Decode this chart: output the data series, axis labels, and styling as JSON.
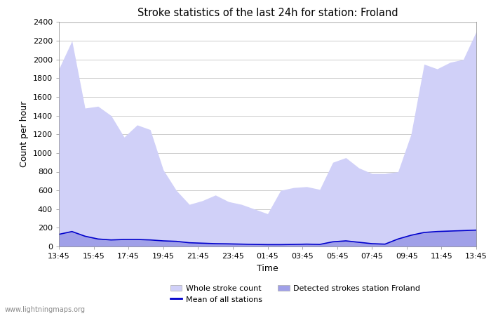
{
  "title": "Stroke statistics of the last 24h for station: Froland",
  "xlabel": "Time",
  "ylabel": "Count per hour",
  "x_labels": [
    "13:45",
    "15:45",
    "17:45",
    "19:45",
    "21:45",
    "23:45",
    "01:45",
    "03:45",
    "05:45",
    "07:45",
    "09:45",
    "11:45",
    "13:45"
  ],
  "ylim": [
    0,
    2400
  ],
  "yticks": [
    0,
    200,
    400,
    600,
    800,
    1000,
    1200,
    1400,
    1600,
    1800,
    2000,
    2200,
    2400
  ],
  "whole_stroke": [
    1900,
    2200,
    1480,
    1500,
    1400,
    1170,
    1300,
    1250,
    820,
    600,
    450,
    490,
    550,
    480,
    450,
    400,
    350,
    600,
    630,
    640,
    610,
    900,
    950,
    840,
    780,
    780,
    800,
    1200,
    1950,
    1900,
    1970,
    2000,
    2300
  ],
  "detected_strokes": [
    130,
    160,
    110,
    80,
    70,
    75,
    75,
    70,
    60,
    55,
    40,
    35,
    30,
    28,
    25,
    22,
    20,
    20,
    22,
    25,
    22,
    50,
    60,
    45,
    30,
    25,
    80,
    120,
    150,
    160,
    165,
    170,
    175
  ],
  "mean_line": [
    130,
    160,
    110,
    80,
    70,
    75,
    75,
    70,
    60,
    55,
    40,
    35,
    30,
    28,
    25,
    22,
    20,
    20,
    22,
    25,
    22,
    50,
    60,
    45,
    30,
    25,
    80,
    120,
    150,
    160,
    165,
    170,
    175
  ],
  "whole_stroke_color": "#d0d0f8",
  "detected_stroke_color": "#a0a0e8",
  "mean_line_color": "#0000cc",
  "background_color": "#ffffff",
  "watermark": "www.lightningmaps.org",
  "n_points": 33,
  "legend_items": [
    {
      "type": "patch",
      "color": "#d0d0f8",
      "label": "Whole stroke count"
    },
    {
      "type": "line",
      "color": "#0000cc",
      "label": "Mean of all stations"
    },
    {
      "type": "patch",
      "color": "#a0a0e8",
      "label": "Detected strokes station Froland"
    }
  ]
}
